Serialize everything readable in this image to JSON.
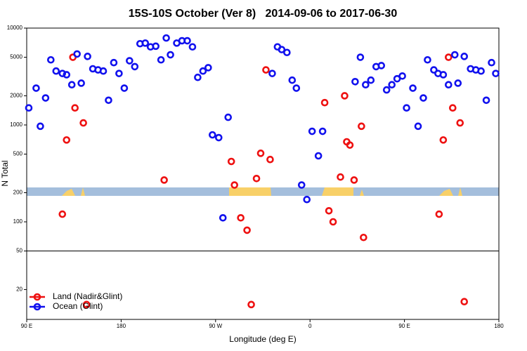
{
  "chart_data": {
    "type": "scatter",
    "title": "15S-10S October (Ver 8)   2014-09-06 to 2017-06-30",
    "x_label": "Longitude (deg E)",
    "y_label": "N Total",
    "xlim": [
      -270,
      180
    ],
    "xticks": [
      {
        "value": -270,
        "label": "90 E"
      },
      {
        "value": -180,
        "label": "180"
      },
      {
        "value": -90,
        "label": "90 W"
      },
      0,
      {
        "value": 90,
        "label": "90 E"
      },
      180
    ],
    "ylim": [
      10,
      10000
    ],
    "log_y": true,
    "yticks": [
      10000,
      5000,
      2000,
      1000,
      500,
      200,
      100,
      50,
      20
    ],
    "hlines": [
      50
    ],
    "legend": "lower left",
    "series": [
      {
        "name": "Land (Nadir&Glint)",
        "color": "#ee1111",
        "x": [
          -236,
          -232,
          -226,
          -224,
          -216,
          -213,
          -139,
          -75,
          -72,
          -66,
          -60,
          -56,
          -51,
          -47,
          -42,
          -38,
          14,
          18,
          22,
          29,
          33,
          35,
          38,
          42,
          49,
          51,
          123,
          127,
          132,
          136,
          143,
          147
        ],
        "values": [
          120,
          700,
          5000,
          1500,
          1050,
          14,
          270,
          420,
          240,
          110,
          82,
          14,
          280,
          510,
          3700,
          440,
          1700,
          130,
          100,
          290,
          2000,
          670,
          620,
          270,
          970,
          69,
          120,
          700,
          5000,
          1500,
          1050,
          15
        ]
      },
      {
        "name": "Ocean (Glint)",
        "color": "#1111ee",
        "x": [
          -268,
          -261,
          -257,
          -252,
          -247,
          -242,
          -236,
          -232,
          -227,
          -222,
          -218,
          -212,
          -207,
          -202,
          -197,
          -192,
          -187,
          -182,
          -177,
          -172,
          -167,
          -162,
          -157,
          -152,
          -147,
          -142,
          -137,
          -133,
          -127,
          -122,
          -117,
          -112,
          -107,
          -102,
          -97,
          -93,
          -87,
          -83,
          -78,
          -36,
          -31,
          -27,
          -22,
          -17,
          -13,
          -8,
          -3,
          2,
          8,
          12,
          43,
          48,
          53,
          58,
          63,
          68,
          73,
          78,
          83,
          88,
          92,
          98,
          103,
          108,
          112,
          118,
          122,
          127,
          132,
          138,
          141,
          147,
          153,
          158,
          163,
          168,
          173,
          177
        ],
        "values": [
          1500,
          2400,
          970,
          1900,
          4700,
          3600,
          3400,
          3300,
          2600,
          5400,
          2700,
          5100,
          3800,
          3700,
          3600,
          1800,
          4400,
          3400,
          2400,
          4600,
          4000,
          6900,
          7000,
          6400,
          6500,
          4700,
          7900,
          5300,
          7000,
          7400,
          7400,
          6400,
          3100,
          3600,
          3900,
          790,
          740,
          110,
          1200,
          3400,
          6400,
          6000,
          5600,
          2900,
          2400,
          240,
          170,
          860,
          480,
          860,
          2800,
          5000,
          2600,
          2900,
          4000,
          4100,
          2300,
          2600,
          3000,
          3200,
          1500,
          2400,
          970,
          1900,
          4700,
          3700,
          3400,
          3300,
          2600,
          5300,
          2700,
          5100,
          3800,
          3700,
          3600,
          1800,
          4400,
          3400
        ]
      }
    ]
  }
}
